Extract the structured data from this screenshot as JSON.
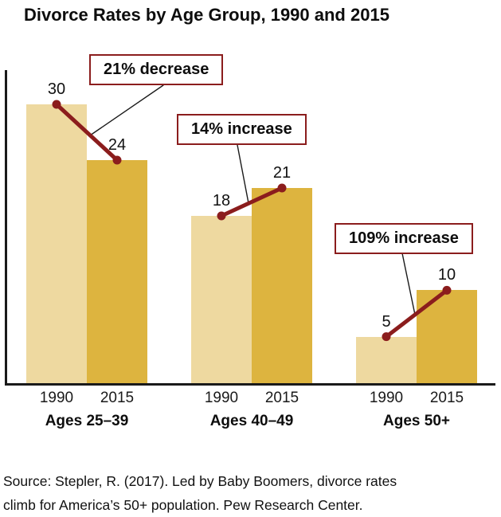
{
  "title": "Divorce Rates by Age Group, 1990 and 2015",
  "source": {
    "line1": "Source: Stepler, R. (2017). Led by Baby Boomers, divorce rates",
    "line2": "climb for America’s 50+ population. Pew Research Center."
  },
  "chart_data": {
    "type": "bar",
    "title": "Divorce Rates by Age Group, 1990 and 2015",
    "xlabel": "",
    "ylabel": "",
    "categories": [
      "Ages 25–39",
      "Ages 40–49",
      "Ages 50+"
    ],
    "series": [
      {
        "name": "1990",
        "values": [
          30,
          18,
          5
        ]
      },
      {
        "name": "2015",
        "values": [
          24,
          21,
          10
        ]
      }
    ],
    "series_colors": [
      "#eed9a0",
      "#ddb43f"
    ],
    "trend_color": "#8b1d1d",
    "annotations": [
      {
        "label": "21% decrease",
        "group": "Ages 25–39"
      },
      {
        "label": "14% increase",
        "group": "Ages 40–49"
      },
      {
        "label": "109% increase",
        "group": "Ages 50+"
      }
    ],
    "ylim": [
      0,
      33
    ],
    "grid": false,
    "legend": "none"
  }
}
